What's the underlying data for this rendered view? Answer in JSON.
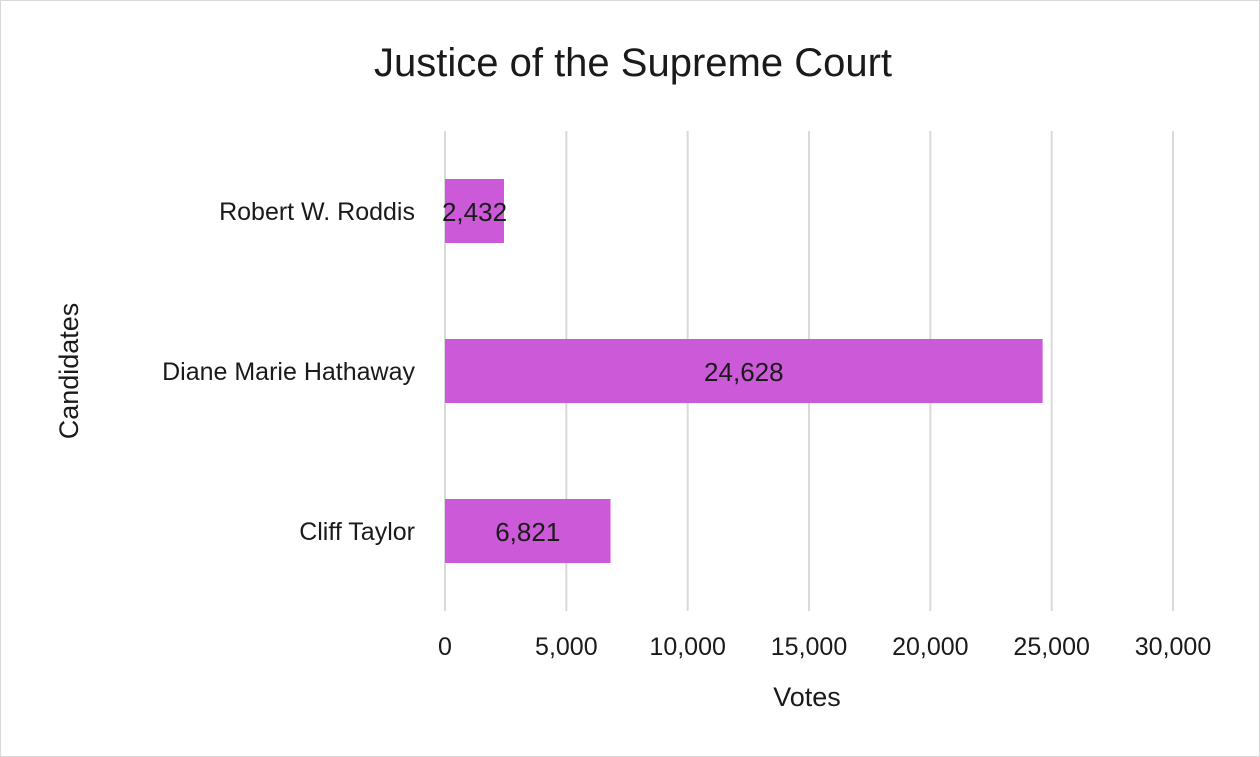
{
  "chart_data": {
    "type": "bar",
    "orientation": "horizontal",
    "title": "Justice of the Supreme Court",
    "xlabel": "Votes",
    "ylabel": "Candidates",
    "categories": [
      "Robert W. Roddis",
      "Diane Marie Hathaway",
      "Cliff Taylor"
    ],
    "values": [
      2432,
      24628,
      6821
    ],
    "data_labels": [
      "2,432",
      "24,628",
      "6,821"
    ],
    "xlim": [
      0,
      30000
    ],
    "xticks": [
      0,
      5000,
      10000,
      15000,
      20000,
      25000,
      30000
    ],
    "xtick_labels": [
      "0",
      "5,000",
      "10,000",
      "15,000",
      "20,000",
      "25,000",
      "30,000"
    ],
    "grid": "vertical",
    "legend": "none",
    "bar_color": "#cc59d8"
  }
}
